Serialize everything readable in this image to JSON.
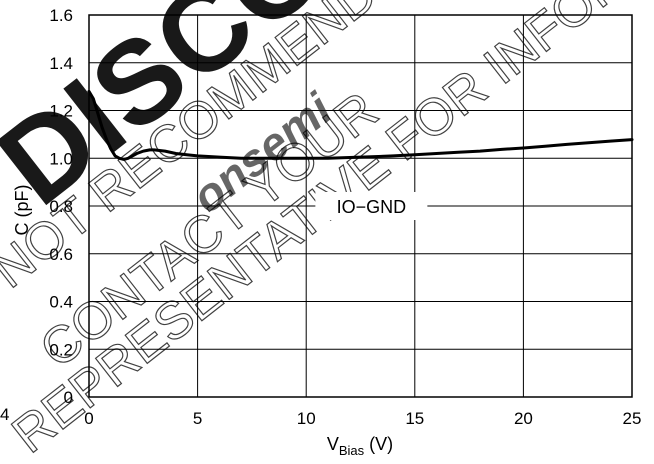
{
  "chart_data": {
    "type": "line",
    "xlabel_main": "V",
    "xlabel_sub": "Bias",
    "xlabel_unit": " (V)",
    "ylabel": "C (pF)",
    "xlim": [
      0,
      25
    ],
    "ylim": [
      0,
      1.6
    ],
    "x_ticks": [
      "0",
      "5",
      "10",
      "15",
      "20",
      "25"
    ],
    "y_ticks": [
      "0",
      "0.2",
      "0.4",
      "0.6",
      "0.8",
      "1.0",
      "1.2",
      "1.4",
      "1.6"
    ],
    "grid": true,
    "annotation": "IO−GND",
    "series": [
      {
        "name": "IO−GND",
        "x": [
          0,
          0.2,
          0.4,
          0.6,
          0.8,
          1.0,
          1.2,
          1.4,
          1.6,
          1.8,
          2.0,
          2.2,
          2.5,
          2.8,
          3.0,
          3.5,
          4.0,
          4.5,
          5.0,
          6.0,
          7.0,
          8.0,
          9.0,
          10.0,
          11.0,
          12.0,
          13.0,
          14.0,
          15.0,
          16.0,
          17.0,
          18.0,
          19.0,
          20.0,
          21.0,
          22.0,
          23.0,
          24.0,
          25.0
        ],
        "y": [
          1.28,
          1.25,
          1.19,
          1.13,
          1.08,
          1.04,
          1.01,
          1.0,
          0.995,
          1.0,
          1.01,
          1.02,
          1.03,
          1.035,
          1.035,
          1.03,
          1.02,
          1.015,
          1.01,
          1.005,
          1.0,
          1.0,
          1.0,
          1.0,
          1.0,
          1.003,
          1.006,
          1.01,
          1.015,
          1.02,
          1.025,
          1.03,
          1.037,
          1.043,
          1.05,
          1.058,
          1.065,
          1.072,
          1.078
        ]
      }
    ]
  },
  "watermark": {
    "big": "DISCONTINUED",
    "line1": "NOT RECOMMENDED FOR NEW DESIGN",
    "brand": "onsemi",
    "line2": "CONTACT YOUR",
    "line3": "REPRESENTATIVE FOR INFORMATION",
    "stray_tick": "4"
  }
}
